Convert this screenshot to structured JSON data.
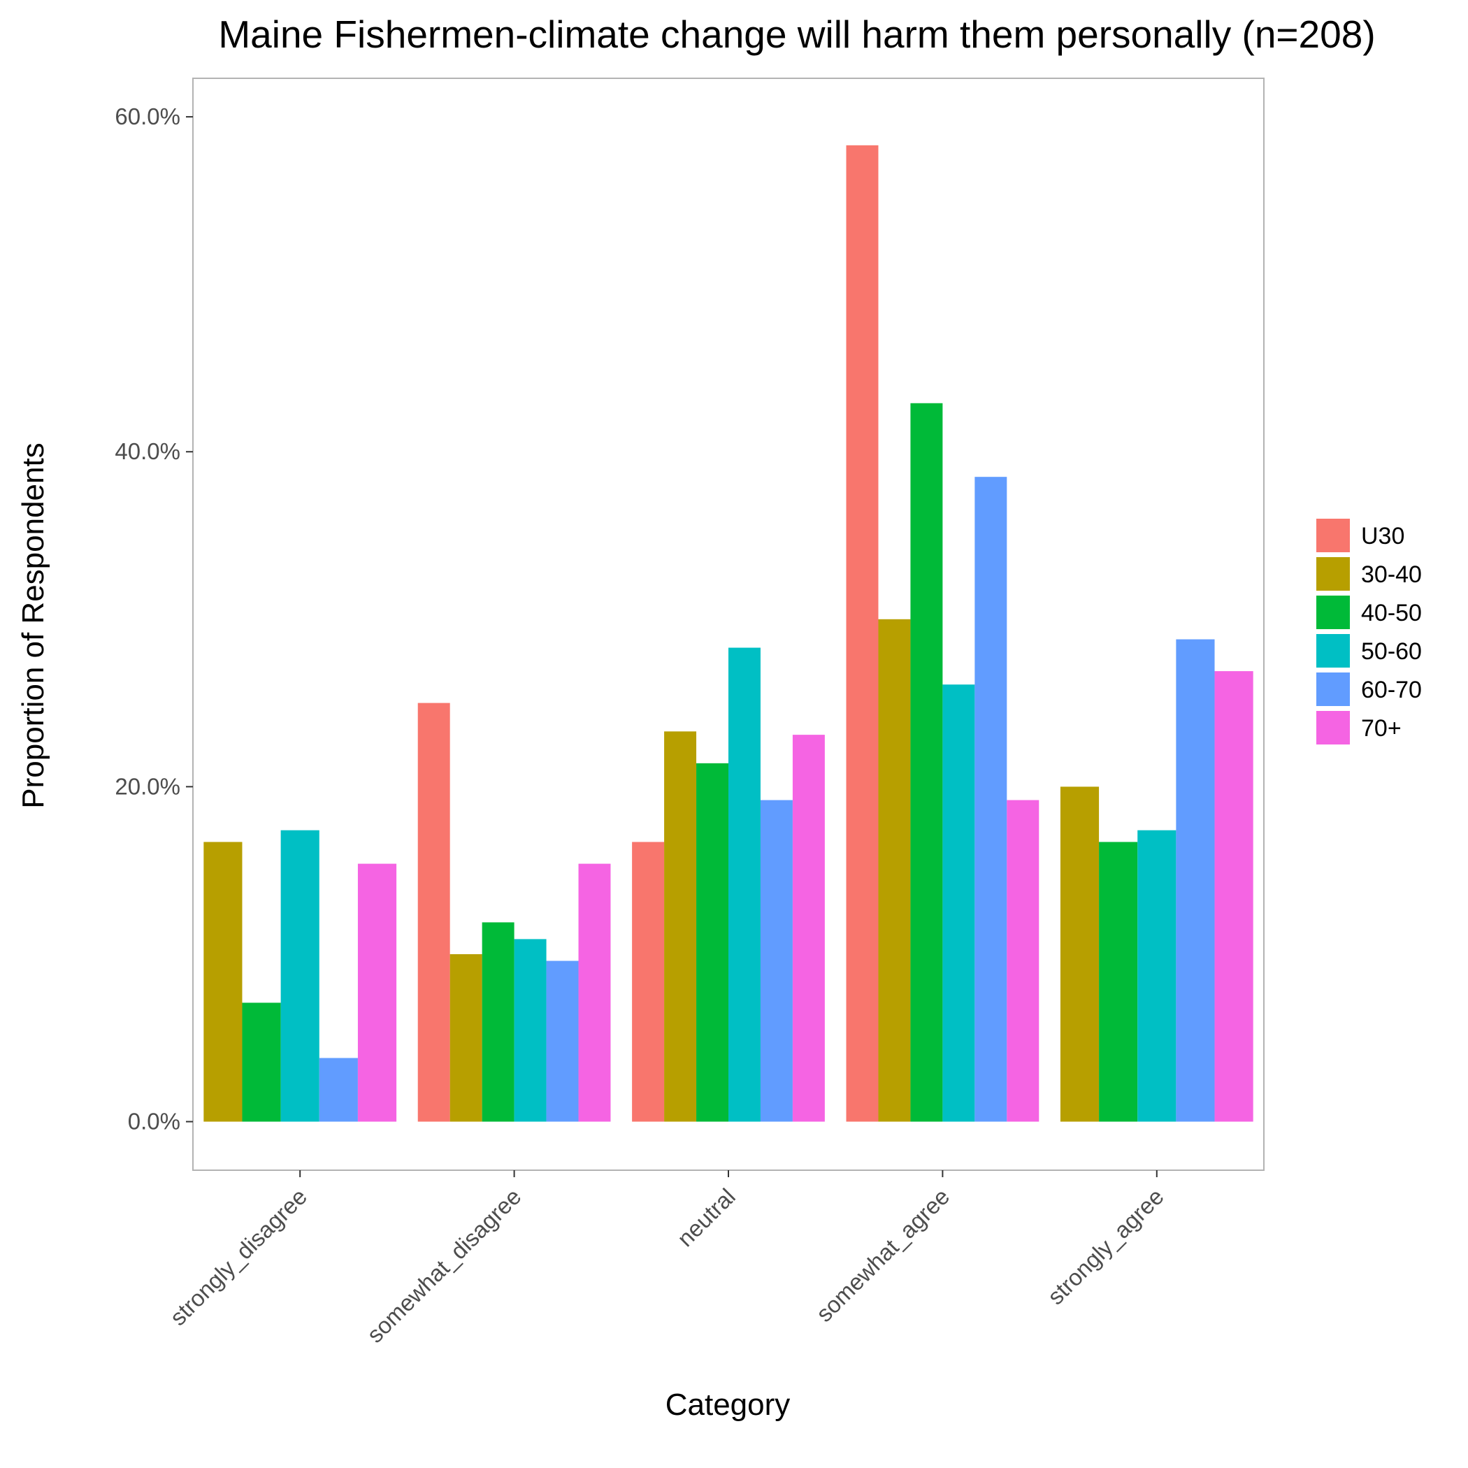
{
  "chart_data": {
    "type": "bar",
    "title": "Maine Fishermen-climate change will harm them personally (n=208)",
    "xlabel": "Category",
    "ylabel": "Proportion of Respondents",
    "categories": [
      "strongly_disagree",
      "somewhat_disagree",
      "neutral",
      "somewhat_agree",
      "strongly_agree"
    ],
    "y_ticks": [
      0,
      20,
      40,
      60
    ],
    "y_tick_labels": [
      "0.0%",
      "20.0%",
      "40.0%",
      "60.0%"
    ],
    "ylim": [
      -2.9,
      62.3
    ],
    "grid": false,
    "legend_position": "right",
    "series": [
      {
        "name": "U30",
        "color": "#F8766D",
        "values": [
          null,
          25.0,
          16.7,
          58.3,
          null
        ]
      },
      {
        "name": "30-40",
        "color": "#B79F00",
        "values": [
          16.7,
          10.0,
          23.3,
          30.0,
          20.0
        ]
      },
      {
        "name": "40-50",
        "color": "#00BA38",
        "values": [
          7.1,
          11.9,
          21.4,
          42.9,
          16.7
        ]
      },
      {
        "name": "50-60",
        "color": "#00BFC4",
        "values": [
          17.4,
          10.9,
          28.3,
          26.1,
          17.4
        ]
      },
      {
        "name": "60-70",
        "color": "#619CFF",
        "values": [
          3.8,
          9.6,
          19.2,
          38.5,
          28.8
        ]
      },
      {
        "name": "70+",
        "color": "#F564E3",
        "values": [
          15.4,
          15.4,
          23.1,
          19.2,
          26.9
        ]
      }
    ]
  }
}
